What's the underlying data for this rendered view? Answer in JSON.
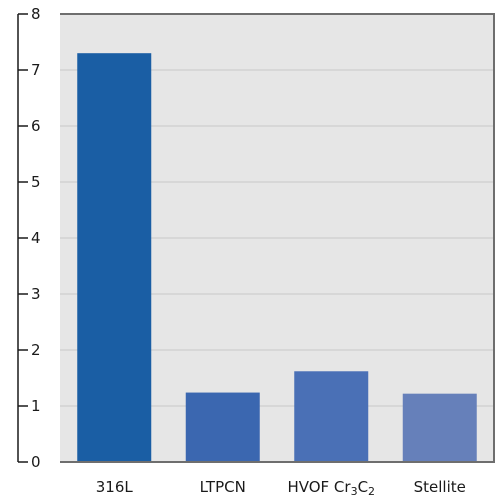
{
  "chart_data": {
    "type": "bar",
    "categories": [
      "316L",
      "LTPCN",
      "HVOF Cr3C2",
      "Stellite"
    ],
    "category_labels": [
      {
        "parts": [
          {
            "t": "316L"
          }
        ]
      },
      {
        "parts": [
          {
            "t": "LTPCN"
          }
        ]
      },
      {
        "parts": [
          {
            "t": "HVOF Cr"
          },
          {
            "t": "3",
            "sub": true
          },
          {
            "t": "C"
          },
          {
            "t": "2",
            "sub": true
          }
        ]
      },
      {
        "parts": [
          {
            "t": "Stellite"
          }
        ]
      }
    ],
    "values": [
      7.3,
      1.24,
      1.62,
      1.22
    ],
    "ylim": [
      0,
      8
    ],
    "yticks": [
      0,
      1,
      2,
      3,
      4,
      5,
      6,
      7,
      8
    ],
    "grid": true,
    "title": "",
    "xlabel": "",
    "ylabel": "",
    "colors": {
      "plot_background": "#e6e6e6",
      "gridline": "#c8c8c8",
      "frame": "#6e6e6e",
      "bars": [
        "#1a5ea4",
        "#3b67b0",
        "#4a70b6",
        "#6680ba"
      ]
    }
  }
}
